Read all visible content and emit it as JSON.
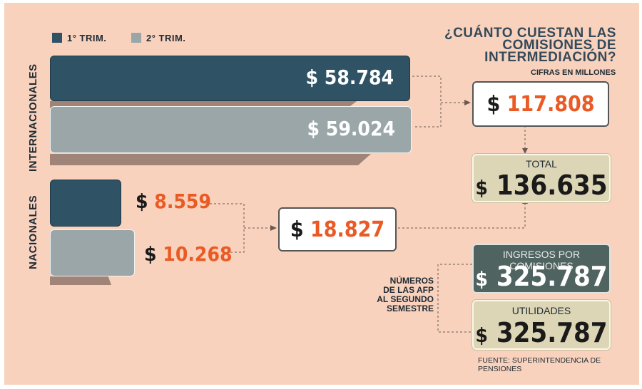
{
  "legend": {
    "q1_label": "1° TRIM.",
    "q2_label": "2° TRIM."
  },
  "title": "¿CUÁNTO CUESTAN LAS COMISIONES DE INTERMEDIACIÓN?",
  "subtitle": "CIFRAS EN MILLONES",
  "currency_symbol": "$",
  "colors": {
    "q1": "#2f5364",
    "q2": "#9aa6a8",
    "accent": "#ea5a25",
    "background": "#f8d2bd"
  },
  "chart_data": {
    "type": "bar",
    "orientation": "horizontal",
    "categories": [
      "INTERNACIONALES",
      "NACIONALES"
    ],
    "series": [
      {
        "name": "1° TRIM.",
        "values": [
          58784,
          8559
        ]
      },
      {
        "name": "2° TRIM.",
        "values": [
          59024,
          10268
        ]
      }
    ],
    "value_labels": {
      "internacionales_q1": "$ 58.784",
      "internacionales_q2": "$ 59.024",
      "nacionales_q1": "8.559",
      "nacionales_q2": "10.268"
    },
    "legend_position": "top-left",
    "grid": false
  },
  "summary": {
    "internacionales_total": "117.808",
    "nacionales_total": "18.827",
    "total_label": "TOTAL",
    "total_value": "136.635"
  },
  "afp": {
    "note_line1": "NÚMEROS",
    "note_line2": "DE LAS AFP",
    "note_line3": "AL SEGUNDO",
    "note_line4": "SEMESTRE",
    "ingresos_label": "INGRESOS POR COMISIONES",
    "ingresos_value": "325.787",
    "utilidades_label": "UTILIDADES",
    "utilidades_value": "325.787"
  },
  "source": "FUENTE: SUPERINTENDENCIA DE PENSIONES"
}
